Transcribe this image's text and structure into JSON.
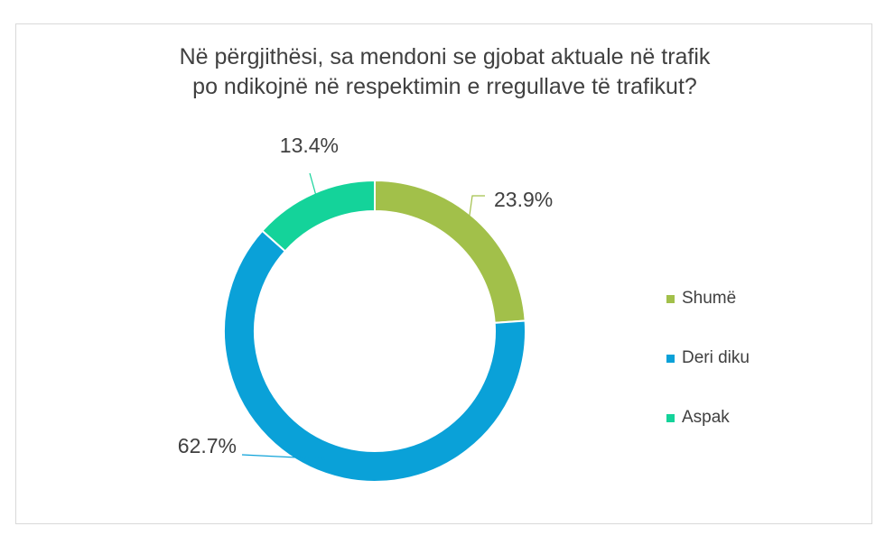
{
  "chart_data": {
    "type": "pie",
    "variant": "donut",
    "title_lines": [
      "Në përgjithësi, sa mendoni se gjobat aktuale në trafik",
      "po ndikojnë në respektimin e rregullave të trafikut?"
    ],
    "slices": [
      {
        "name": "Shumë",
        "value": 23.9,
        "label": "23.9%",
        "color": "#a2c04a"
      },
      {
        "name": "Deri diku",
        "value": 62.7,
        "label": "62.7%",
        "color": "#0aa1d8"
      },
      {
        "name": "Aspak",
        "value": 13.4,
        "label": "13.4%",
        "color": "#14d39a"
      }
    ],
    "legend_position": "right"
  }
}
